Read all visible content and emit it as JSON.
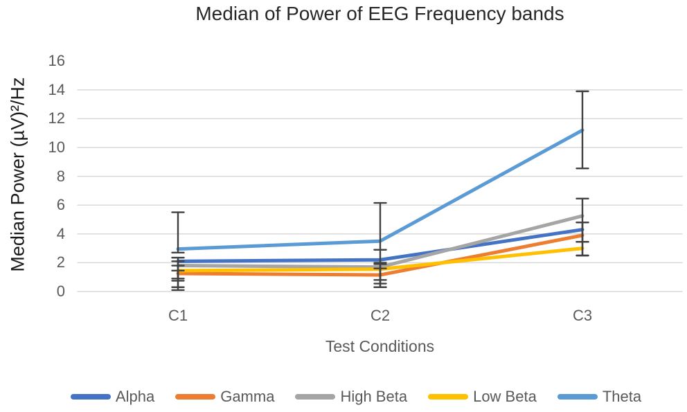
{
  "chart_data": {
    "type": "line",
    "title": "Median of Power of EEG Frequency bands",
    "xlabel": "Test Conditions",
    "ylabel": "Median Power (µV)²/Hz",
    "categories": [
      "C1",
      "C2",
      "C3"
    ],
    "ylim": [
      0,
      16
    ],
    "yticks": [
      0,
      2,
      4,
      6,
      8,
      10,
      12,
      14,
      16
    ],
    "grid": "horizontal",
    "legend_position": "bottom",
    "colors": {
      "gridline": "#D9D9D9",
      "error_bar": "#404040",
      "tick_text": "#595959",
      "title_text": "#262626"
    },
    "series": [
      {
        "name": "Alpha",
        "color": "#4472C4",
        "values": [
          2.1,
          2.2,
          4.3
        ],
        "error_lo": [
          0.9,
          0.8,
          3.45
        ],
        "error_hi": [
          2.35,
          2.9,
          4.8
        ]
      },
      {
        "name": "Gamma",
        "color": "#ED7D31",
        "values": [
          1.25,
          1.15,
          3.9
        ],
        "error_lo": [
          0.1,
          0.3,
          2.5
        ],
        "error_hi": [
          1.45,
          1.6,
          4.8
        ]
      },
      {
        "name": "High Beta",
        "color": "#A5A5A5",
        "values": [
          1.8,
          1.7,
          5.25
        ],
        "error_lo": [
          0.75,
          0.55,
          3.45
        ],
        "error_hi": [
          2.1,
          2.0,
          6.45
        ]
      },
      {
        "name": "Low Beta",
        "color": "#FFC000",
        "values": [
          1.45,
          1.55,
          3.0
        ],
        "error_lo": [
          0.3,
          0.3,
          2.5
        ],
        "error_hi": [
          1.8,
          1.9,
          3.45
        ]
      },
      {
        "name": "Theta",
        "color": "#5B9BD5",
        "values": [
          2.95,
          3.5,
          11.2
        ],
        "error_lo": [
          2.7,
          2.9,
          8.55
        ],
        "error_hi": [
          5.5,
          6.15,
          13.9
        ]
      }
    ]
  }
}
